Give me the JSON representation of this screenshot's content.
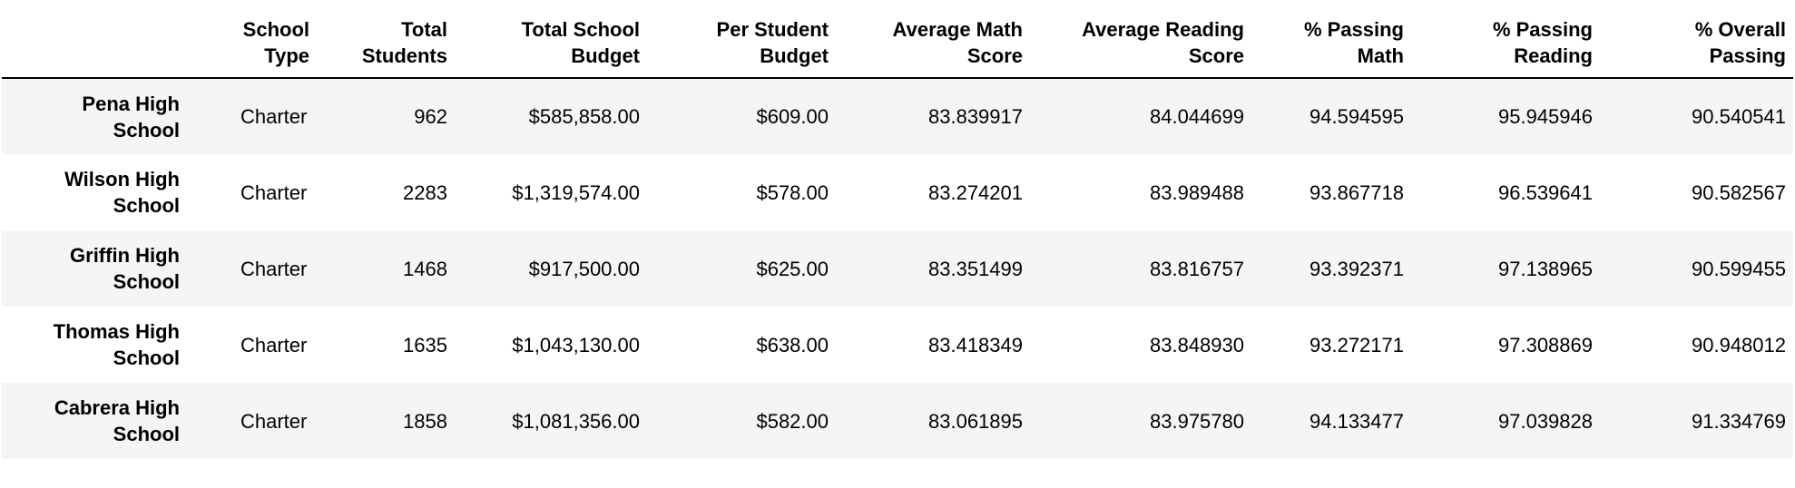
{
  "columns": [
    "School Type",
    "Total Students",
    "Total School Budget",
    "Per Student Budget",
    "Average Math Score",
    "Average Reading Score",
    "% Passing Math",
    "% Passing Reading",
    "% Overall Passing"
  ],
  "column_lines": [
    [
      "School",
      "Type"
    ],
    [
      "Total",
      "Students"
    ],
    [
      "Total School",
      "Budget"
    ],
    [
      "Per Student",
      "Budget"
    ],
    [
      "Average Math",
      "Score"
    ],
    [
      "Average Reading",
      "Score"
    ],
    [
      "% Passing",
      "Math"
    ],
    [
      "% Passing",
      "Reading"
    ],
    [
      "% Overall",
      "Passing"
    ]
  ],
  "rows": [
    {
      "index": [
        "Pena High",
        "School"
      ],
      "cells": [
        "Charter",
        "962",
        "$585,858.00",
        "$609.00",
        "83.839917",
        "84.044699",
        "94.594595",
        "95.945946",
        "90.540541"
      ]
    },
    {
      "index": [
        "Wilson High",
        "School"
      ],
      "cells": [
        "Charter",
        "2283",
        "$1,319,574.00",
        "$578.00",
        "83.274201",
        "83.989488",
        "93.867718",
        "96.539641",
        "90.582567"
      ]
    },
    {
      "index": [
        "Griffin High",
        "School"
      ],
      "cells": [
        "Charter",
        "1468",
        "$917,500.00",
        "$625.00",
        "83.351499",
        "83.816757",
        "93.392371",
        "97.138965",
        "90.599455"
      ]
    },
    {
      "index": [
        "Thomas High",
        "School"
      ],
      "cells": [
        "Charter",
        "1635",
        "$1,043,130.00",
        "$638.00",
        "83.418349",
        "83.848930",
        "93.272171",
        "97.308869",
        "90.948012"
      ]
    },
    {
      "index": [
        "Cabrera High",
        "School"
      ],
      "cells": [
        "Charter",
        "1858",
        "$1,081,356.00",
        "$582.00",
        "83.061895",
        "83.975780",
        "94.133477",
        "97.039828",
        "91.334769"
      ]
    }
  ]
}
